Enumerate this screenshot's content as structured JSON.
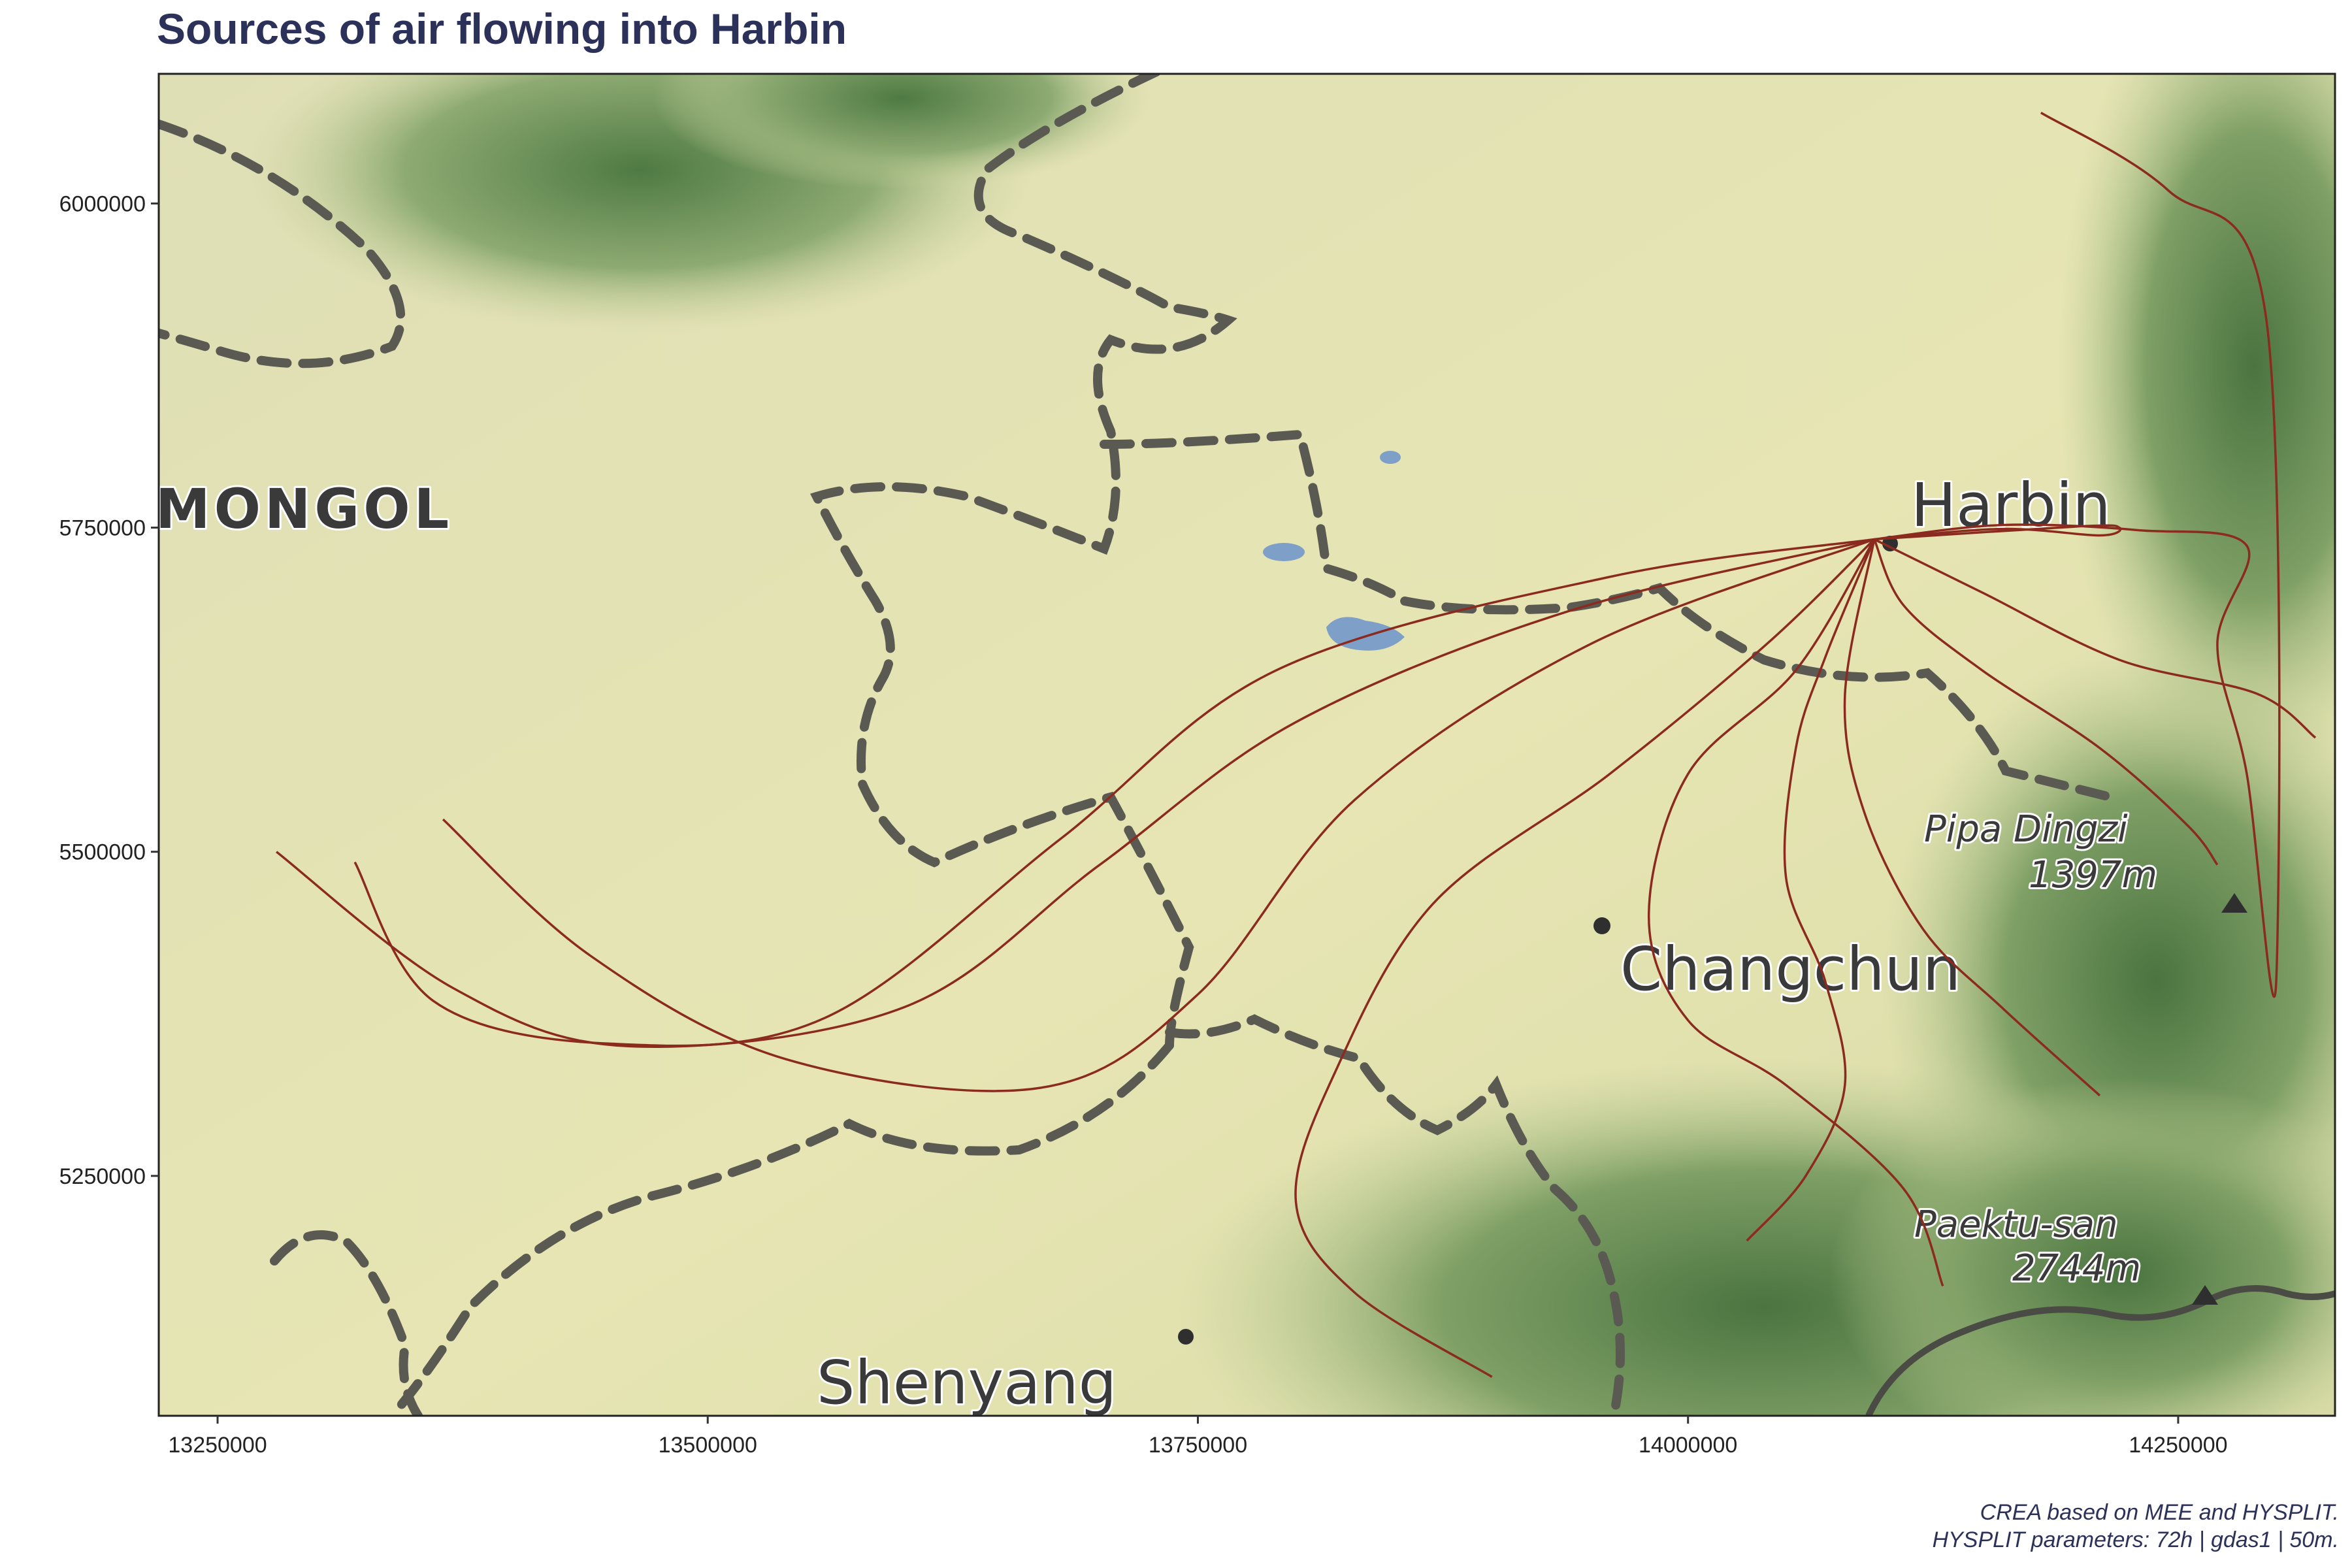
{
  "title": "Sources of air flowing into Harbin",
  "caption": {
    "line1": "CREA based on MEE and HYSPLIT.",
    "line2": "HYSPLIT parameters: 72h | gdas1 | 50m."
  },
  "basemap_labels": {
    "region": "MONGOL",
    "city_harbin": "Harbin",
    "city_changchun": "Changchun",
    "city_shenyang": "Shenyang",
    "peak1_name": "Pipa Dingzi",
    "peak1_elev": "1397m",
    "peak2_name": "Paektu-san",
    "peak2_elev": "2744m"
  },
  "colors": {
    "trajectory": "#8b2a1f",
    "title": "#2b3158",
    "plain": "#e3e2b0",
    "mountain": "#5f8a4e",
    "border": "#55554f"
  },
  "chart_data": {
    "type": "map-trajectories",
    "title": "Sources of air flowing into Harbin",
    "xlim": [
      13220000,
      14330000
    ],
    "ylim": [
      5065000,
      6100000
    ],
    "xticks": [
      13250000,
      13500000,
      13750000,
      14000000,
      14250000
    ],
    "yticks": [
      5250000,
      5500000,
      5750000,
      6000000
    ],
    "receptor": {
      "name": "Harbin",
      "x": 14095000,
      "y": 5741000
    },
    "trajectories": [
      [
        [
          14095000,
          5741000
        ],
        [
          13960000,
          5712000
        ],
        [
          13790000,
          5640000
        ],
        [
          13680000,
          5510000
        ],
        [
          13560000,
          5372000
        ],
        [
          13450000,
          5352000
        ],
        [
          13360000,
          5385000
        ],
        [
          13320000,
          5492000
        ]
      ],
      [
        [
          14095000,
          5741000
        ],
        [
          13940000,
          5686000
        ],
        [
          13800000,
          5600000
        ],
        [
          13700000,
          5490000
        ],
        [
          13600000,
          5380000
        ],
        [
          13460000,
          5350000
        ],
        [
          13370000,
          5395000
        ],
        [
          13280000,
          5500000
        ]
      ],
      [
        [
          14095000,
          5741000
        ],
        [
          13950000,
          5660000
        ],
        [
          13830000,
          5540000
        ],
        [
          13750000,
          5390000
        ],
        [
          13670000,
          5318000
        ],
        [
          13540000,
          5340000
        ],
        [
          13440000,
          5420000
        ],
        [
          13365000,
          5525000
        ]
      ],
      [
        [
          14095000,
          5741000
        ],
        [
          14040000,
          5660000
        ],
        [
          13960000,
          5560000
        ],
        [
          13870000,
          5460000
        ],
        [
          13820000,
          5330000
        ],
        [
          13800000,
          5230000
        ],
        [
          13830000,
          5160000
        ],
        [
          13900000,
          5095000
        ]
      ],
      [
        [
          14095000,
          5741000
        ],
        [
          14055000,
          5640000
        ],
        [
          14000000,
          5560000
        ],
        [
          13980000,
          5450000
        ],
        [
          14000000,
          5370000
        ],
        [
          14050000,
          5320000
        ],
        [
          14110000,
          5240000
        ],
        [
          14130000,
          5165000
        ]
      ],
      [
        [
          14095000,
          5741000
        ],
        [
          14070000,
          5650000
        ],
        [
          14055000,
          5580000
        ],
        [
          14050000,
          5480000
        ],
        [
          14070000,
          5400000
        ],
        [
          14080000,
          5320000
        ],
        [
          14060000,
          5250000
        ],
        [
          14030000,
          5200000
        ]
      ],
      [
        [
          14095000,
          5741000
        ],
        [
          14080000,
          5620000
        ],
        [
          14090000,
          5530000
        ],
        [
          14120000,
          5440000
        ],
        [
          14160000,
          5380000
        ],
        [
          14210000,
          5312000
        ]
      ],
      [
        [
          14095000,
          5741000
        ],
        [
          14110000,
          5690000
        ],
        [
          14150000,
          5640000
        ],
        [
          14210000,
          5580000
        ],
        [
          14255000,
          5520000
        ],
        [
          14270000,
          5490000
        ]
      ],
      [
        [
          14095000,
          5741000
        ],
        [
          14150000,
          5700000
        ],
        [
          14220000,
          5648000
        ],
        [
          14290000,
          5622000
        ],
        [
          14320000,
          5588000
        ]
      ],
      [
        [
          14095000,
          5741000
        ],
        [
          14160000,
          5752000
        ],
        [
          14230000,
          5748000
        ],
        [
          14285000,
          5736000
        ],
        [
          14270000,
          5660000
        ],
        [
          14285000,
          5560000
        ],
        [
          14300000,
          5400000
        ],
        [
          14295000,
          5910000
        ],
        [
          14245000,
          6010000
        ],
        [
          14180000,
          6070000
        ]
      ],
      [
        [
          14095000,
          5741000
        ],
        [
          14200000,
          5751000
        ],
        [
          14220000,
          5750000
        ],
        [
          14210000,
          5744000
        ],
        [
          14160000,
          5749000
        ],
        [
          14095000,
          5741000
        ]
      ]
    ]
  }
}
